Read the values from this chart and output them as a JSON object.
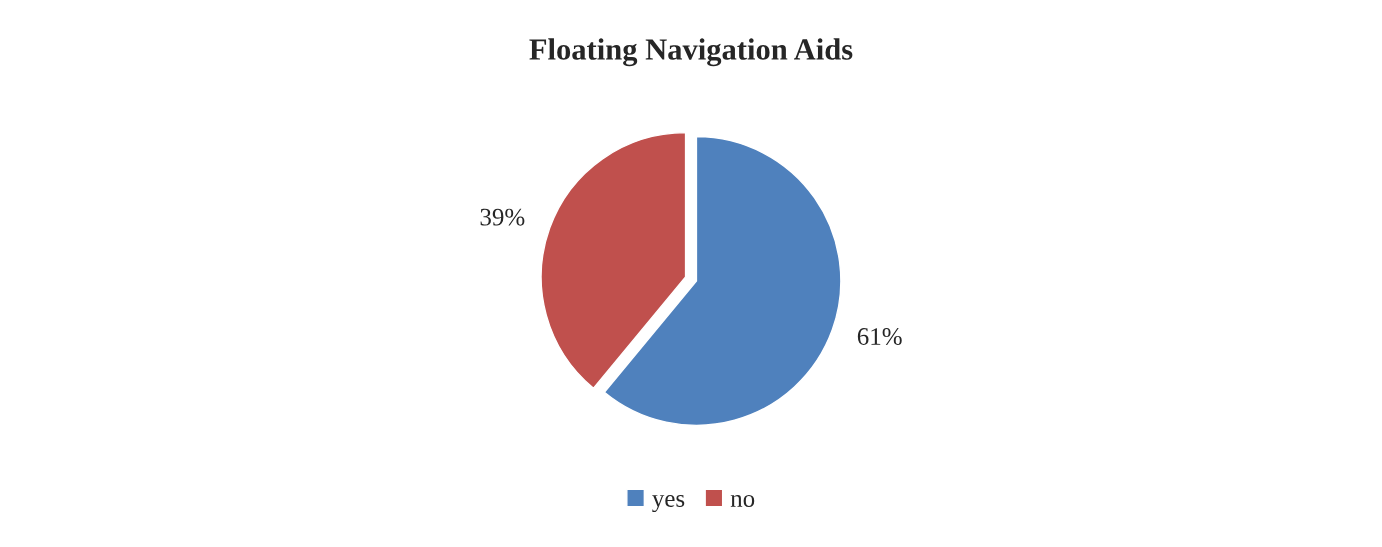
{
  "chart_data": {
    "type": "pie",
    "title": "Floating Navigation Aids",
    "categories": [
      "yes",
      "no"
    ],
    "values": [
      61,
      39
    ],
    "colors": [
      "#4f81bd",
      "#c0504d"
    ],
    "value_labels": [
      "61%",
      "39%"
    ],
    "legend": "bottom"
  }
}
